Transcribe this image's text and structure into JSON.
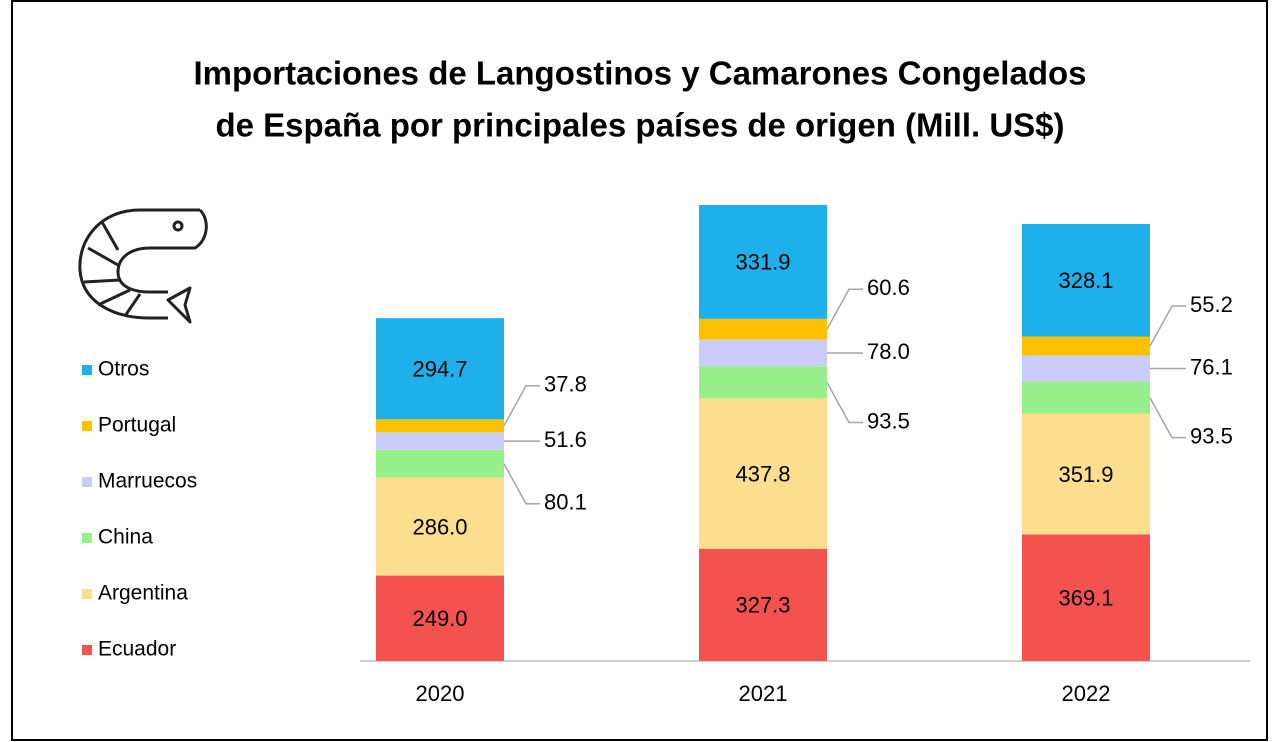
{
  "chart_data": {
    "type": "stacked-bar",
    "title": [
      "Importaciones de Langostinos y Camarones Congelados",
      "de España por principales países de origen (Mill. US$)"
    ],
    "categories": [
      "2020",
      "2021",
      "2022"
    ],
    "series": [
      {
        "name": "Ecuador",
        "color": "#f4524f",
        "values": [
          249.0,
          327.3,
          369.1
        ],
        "value_labels": [
          "249.0",
          "327.3",
          "369.1"
        ]
      },
      {
        "name": "Argentina",
        "color": "#fbdf8f",
        "values": [
          286.0,
          437.8,
          351.9
        ],
        "value_labels": [
          "286.0",
          "437.8",
          "351.9"
        ]
      },
      {
        "name": "China",
        "color": "#98f08c",
        "values": [
          80.1,
          93.5,
          93.5
        ],
        "value_labels": [
          "80.1",
          "93.5",
          "93.5"
        ]
      },
      {
        "name": "Marruecos",
        "color": "#ccccfa",
        "values": [
          51.6,
          78.0,
          76.1
        ],
        "value_labels": [
          "51.6",
          "78.0",
          "76.1"
        ]
      },
      {
        "name": "Portugal",
        "color": "#ffc000",
        "values": [
          37.8,
          60.6,
          55.2
        ],
        "value_labels": [
          "37.8",
          "60.6",
          "55.2"
        ]
      },
      {
        "name": "Otros",
        "color": "#1eb0ea",
        "values": [
          294.7,
          331.9,
          328.1
        ],
        "value_labels": [
          "294.7",
          "331.9",
          "328.1"
        ]
      }
    ]
  }
}
